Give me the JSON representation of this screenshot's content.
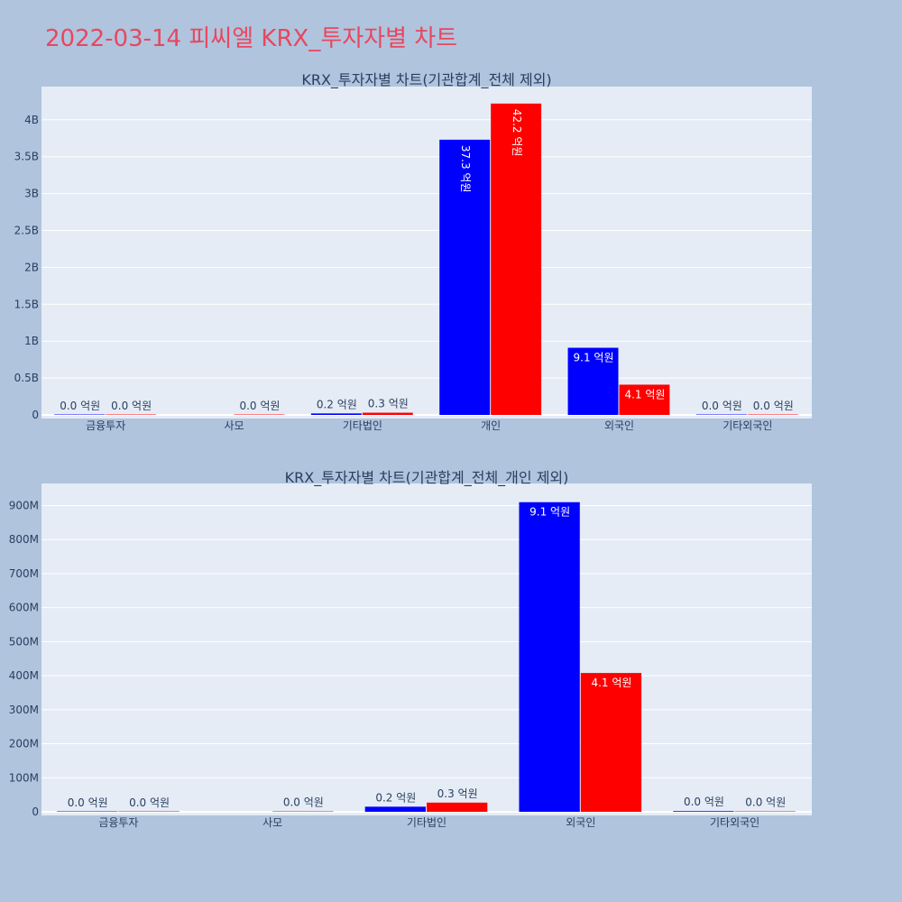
{
  "title": "2022-03-14 피씨엘 KRX_투자자별 차트",
  "colors": {
    "page_bg": "#b0c4de",
    "plot_bg": "#e5ecf6",
    "series_a": "#0000ff",
    "series_b": "#ff0000",
    "title": "#e8475f",
    "text": "#2a3f5f"
  },
  "chart_data": [
    {
      "type": "bar",
      "title": "KRX_투자자별 차트(기관합계_전체 제외)",
      "categories": [
        "금융투자",
        "사모",
        "기타법인",
        "개인",
        "외국인",
        "기타외국인"
      ],
      "yticks": [
        "0",
        "0.5B",
        "1B",
        "1.5B",
        "2B",
        "2.5B",
        "3B",
        "3.5B",
        "4B"
      ],
      "ytick_values": [
        0,
        500000000,
        1000000000,
        1500000000,
        2000000000,
        2500000000,
        3000000000,
        3500000000,
        4000000000
      ],
      "ylim": [
        0,
        4450000000
      ],
      "grid": true,
      "series": [
        {
          "color": "#0000ff",
          "values": [
            0,
            null,
            20000000,
            3730000000,
            910000000,
            0
          ],
          "labels": [
            "0.0 억원",
            "",
            "0.2 억원",
            "37.3 억원",
            "9.1 억원",
            "0.0 억원"
          ]
        },
        {
          "color": "#ff0000",
          "values": [
            0,
            0,
            30000000,
            4220000000,
            410000000,
            0
          ],
          "labels": [
            "0.0 억원",
            "0.0 억원",
            "0.3 억원",
            "42.2 억원",
            "4.1 억원",
            "0.0 억원"
          ]
        }
      ]
    },
    {
      "type": "bar",
      "title": "KRX_투자자별 차트(기관합계_전체_개인 제외)",
      "categories": [
        "금융투자",
        "사모",
        "기타법인",
        "외국인",
        "기타외국인"
      ],
      "yticks": [
        "0",
        "100M",
        "200M",
        "300M",
        "400M",
        "500M",
        "600M",
        "700M",
        "800M",
        "900M"
      ],
      "ytick_values": [
        0,
        100000000,
        200000000,
        300000000,
        400000000,
        500000000,
        600000000,
        700000000,
        800000000,
        900000000
      ],
      "ylim": [
        0,
        965000000
      ],
      "grid": true,
      "series": [
        {
          "color": "#0000ff",
          "values": [
            0,
            null,
            15000000,
            910000000,
            2000000
          ],
          "labels": [
            "0.0 억원",
            "",
            "0.2 억원",
            "9.1 억원",
            "0.0 억원"
          ]
        },
        {
          "color": "#ff0000",
          "values": [
            0,
            1000000,
            27000000,
            408000000,
            1000000
          ],
          "labels": [
            "0.0 억원",
            "0.0 억원",
            "0.3 억원",
            "4.1 억원",
            "0.0 억원"
          ]
        }
      ]
    }
  ]
}
